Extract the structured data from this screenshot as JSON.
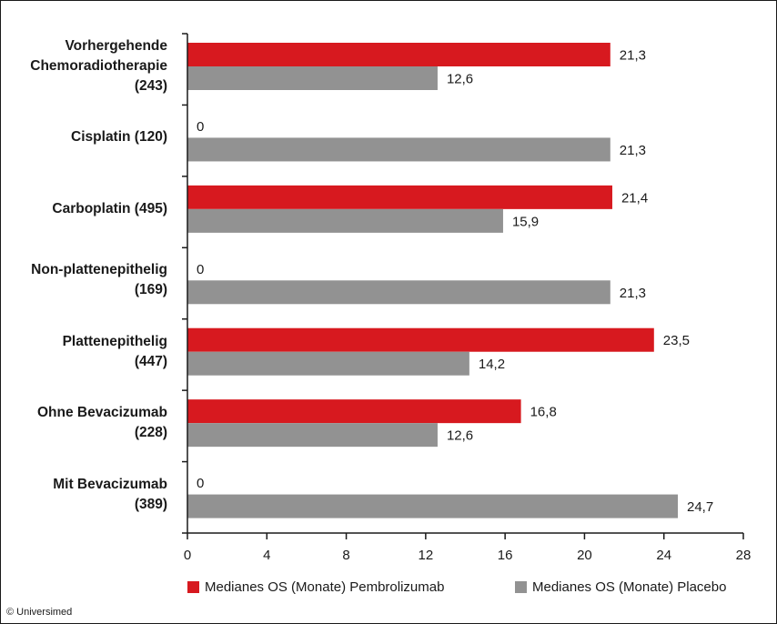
{
  "chart_data": {
    "type": "bar",
    "orientation": "horizontal",
    "categories": [
      [
        "Vorhergehende",
        "Chemoradiotherapie",
        "(243)"
      ],
      [
        "Cisplatin (120)"
      ],
      [
        "Carboplatin (495)"
      ],
      [
        "Non-plattenepithelig",
        "(169)"
      ],
      [
        "Plattenepithelig",
        "(447)"
      ],
      [
        "Ohne Bevacizumab",
        "(228)"
      ],
      [
        "Mit Bevacizumab",
        "(389)"
      ]
    ],
    "series": [
      {
        "name": "Medianes OS (Monate) Pembrolizumab",
        "color": "#d7191f",
        "values": [
          21.3,
          0,
          21.4,
          0,
          23.5,
          16.8,
          0
        ],
        "labels": [
          "21,3",
          "0",
          "21,4",
          "0",
          "23,5",
          "16,8",
          "0"
        ]
      },
      {
        "name": "Medianes OS (Monate) Placebo",
        "color": "#929292",
        "values": [
          12.6,
          21.3,
          15.9,
          21.3,
          14.2,
          12.6,
          24.7
        ],
        "labels": [
          "12,6",
          "21,3",
          "15,9",
          "21,3",
          "14,2",
          "12,6",
          "24,7"
        ]
      }
    ],
    "xlim": [
      0,
      28
    ],
    "xticks": [
      0,
      4,
      8,
      12,
      16,
      20,
      24,
      28
    ],
    "xlabel": "",
    "ylabel": "",
    "grid": false,
    "legend_position": "bottom"
  },
  "footer": {
    "copyright": "© Universimed"
  }
}
